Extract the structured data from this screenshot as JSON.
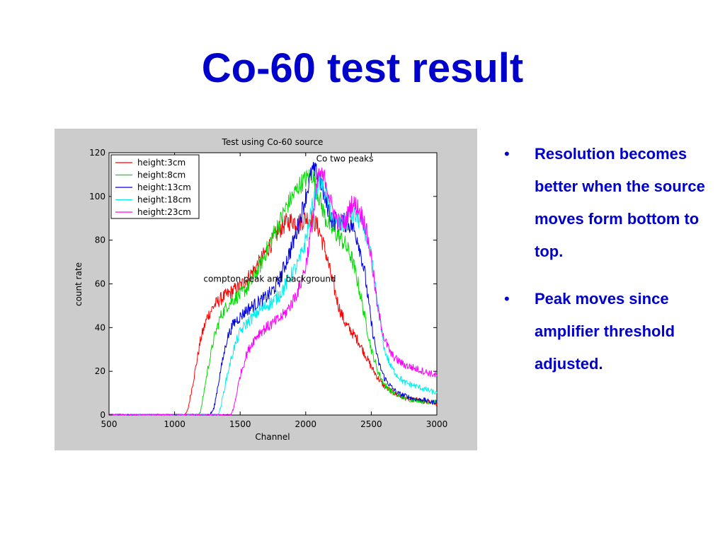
{
  "slide": {
    "title": "Co-60 test result",
    "bullets": [
      "Resolution becomes better when the source moves form bottom to top.",
      "Peak moves since amplifier threshold adjusted."
    ],
    "bullet_symbol": "•",
    "text_color": "#0000cc"
  },
  "chart_data": {
    "type": "line",
    "title": "Test using Co-60 source",
    "xlabel": "Channel",
    "ylabel": "count rate",
    "xlim": [
      500,
      3000
    ],
    "ylim": [
      0,
      120
    ],
    "xticks": [
      500,
      1000,
      1500,
      2000,
      2500,
      3000
    ],
    "yticks": [
      0,
      20,
      40,
      60,
      80,
      100,
      120
    ],
    "grid": false,
    "legend_position": "top-left",
    "annotations": [
      {
        "text": "Co two peaks",
        "x": 2080,
        "y": 116
      },
      {
        "text": "compton peak and background",
        "x": 1220,
        "y": 61
      }
    ],
    "series": [
      {
        "name": "height:3cm",
        "color": "#ff0000",
        "x": [
          500,
          1000,
          1080,
          1100,
          1150,
          1200,
          1250,
          1300,
          1350,
          1400,
          1450,
          1500,
          1550,
          1600,
          1650,
          1700,
          1750,
          1800,
          1850,
          1900,
          1950,
          2000,
          2050,
          2100,
          2150,
          2200,
          2250,
          2300,
          2350,
          2400,
          2450,
          2500,
          2550,
          2600,
          2650,
          2700,
          2750,
          2800,
          2850,
          2900,
          2950,
          3000
        ],
        "y": [
          0,
          0,
          0,
          2,
          18,
          35,
          45,
          50,
          53,
          55,
          57,
          59,
          62,
          66,
          70,
          75,
          80,
          85,
          88,
          89,
          88,
          90,
          90,
          85,
          75,
          62,
          50,
          42,
          38,
          34,
          28,
          22,
          17,
          13,
          11,
          9,
          8,
          7,
          7,
          6,
          6,
          5
        ]
      },
      {
        "name": "height:8cm",
        "color": "#00dd00",
        "x": [
          500,
          1150,
          1180,
          1200,
          1250,
          1300,
          1350,
          1400,
          1450,
          1500,
          1550,
          1600,
          1650,
          1700,
          1750,
          1800,
          1850,
          1900,
          1950,
          2000,
          2050,
          2100,
          2150,
          2200,
          2250,
          2300,
          2350,
          2400,
          2450,
          2500,
          2550,
          2600,
          2650,
          2700,
          2750,
          2800,
          2850,
          2900,
          2950,
          3000
        ],
        "y": [
          0,
          0,
          0,
          2,
          20,
          35,
          45,
          50,
          53,
          55,
          58,
          62,
          68,
          75,
          82,
          88,
          95,
          100,
          105,
          108,
          110,
          100,
          90,
          85,
          82,
          78,
          72,
          60,
          45,
          30,
          20,
          14,
          11,
          9,
          8,
          7,
          7,
          6,
          6,
          6
        ]
      },
      {
        "name": "height:13cm",
        "color": "#0000dd",
        "x": [
          500,
          1250,
          1270,
          1300,
          1350,
          1400,
          1450,
          1500,
          1550,
          1600,
          1650,
          1700,
          1750,
          1800,
          1850,
          1900,
          1950,
          2000,
          2050,
          2100,
          2150,
          2200,
          2250,
          2300,
          2350,
          2400,
          2450,
          2500,
          2550,
          2600,
          2650,
          2700,
          2750,
          2800,
          2850,
          2900,
          2950,
          3000
        ],
        "y": [
          0,
          0,
          0,
          3,
          20,
          35,
          42,
          45,
          48,
          50,
          52,
          54,
          57,
          62,
          70,
          78,
          88,
          100,
          112,
          110,
          98,
          90,
          88,
          88,
          87,
          80,
          65,
          42,
          25,
          17,
          13,
          10,
          9,
          8,
          7,
          7,
          6,
          6
        ]
      },
      {
        "name": "height:18cm",
        "color": "#00eeee",
        "x": [
          500,
          1300,
          1330,
          1350,
          1400,
          1450,
          1500,
          1550,
          1600,
          1650,
          1700,
          1750,
          1800,
          1850,
          1900,
          1950,
          2000,
          2050,
          2100,
          2150,
          2200,
          2250,
          2300,
          2350,
          2400,
          2450,
          2500,
          2550,
          2600,
          2650,
          2700,
          2750,
          2800,
          2850,
          2900,
          2950,
          3000
        ],
        "y": [
          0,
          0,
          0,
          3,
          18,
          30,
          38,
          42,
          45,
          48,
          50,
          52,
          55,
          60,
          65,
          70,
          80,
          95,
          108,
          102,
          92,
          87,
          88,
          92,
          90,
          85,
          72,
          50,
          30,
          22,
          18,
          15,
          14,
          13,
          12,
          11,
          10
        ]
      },
      {
        "name": "height:23cm",
        "color": "#ff00ff",
        "x": [
          500,
          1400,
          1430,
          1450,
          1500,
          1550,
          1600,
          1650,
          1700,
          1750,
          1800,
          1850,
          1900,
          1950,
          2000,
          2050,
          2100,
          2150,
          2200,
          2250,
          2300,
          2350,
          2400,
          2450,
          2500,
          2550,
          2600,
          2650,
          2700,
          2750,
          2800,
          2850,
          2900,
          2950,
          3000
        ],
        "y": [
          0,
          0,
          0,
          3,
          18,
          28,
          34,
          38,
          40,
          42,
          44,
          47,
          52,
          58,
          68,
          88,
          110,
          108,
          95,
          88,
          88,
          97,
          95,
          88,
          72,
          48,
          35,
          28,
          25,
          23,
          22,
          21,
          20,
          19,
          18
        ]
      }
    ]
  }
}
